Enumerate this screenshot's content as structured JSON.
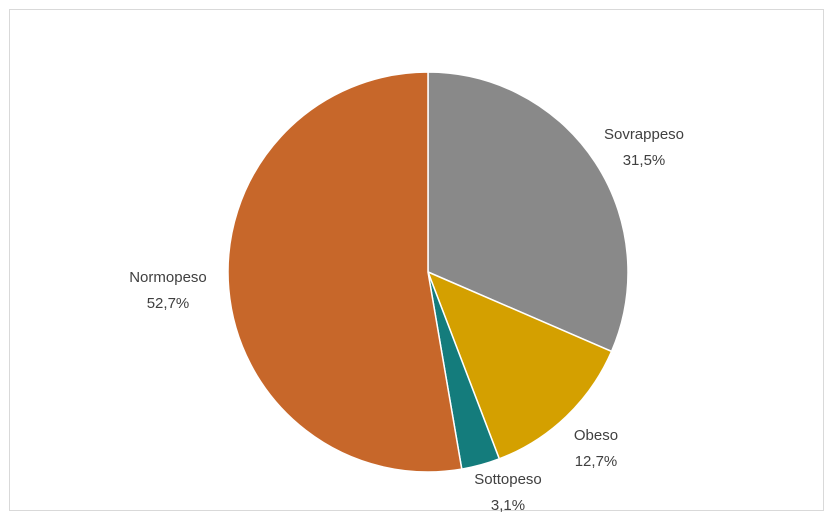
{
  "chart_data": {
    "type": "pie",
    "title": "",
    "start_angle_deg": 0,
    "direction": "clockwise",
    "slices": [
      {
        "name": "Sovrappeso",
        "value": 31.5,
        "label": "31,5%",
        "color": "#898989"
      },
      {
        "name": "Obeso",
        "value": 12.7,
        "label": "12,7%",
        "color": "#d4a000"
      },
      {
        "name": "Sottopeso",
        "value": 3.1,
        "label": "3,1%",
        "color": "#147c7c"
      },
      {
        "name": "Normopeso",
        "value": 52.7,
        "label": "52,7%",
        "color": "#c7672a"
      }
    ],
    "legend": "none",
    "data_labels": "outside"
  }
}
